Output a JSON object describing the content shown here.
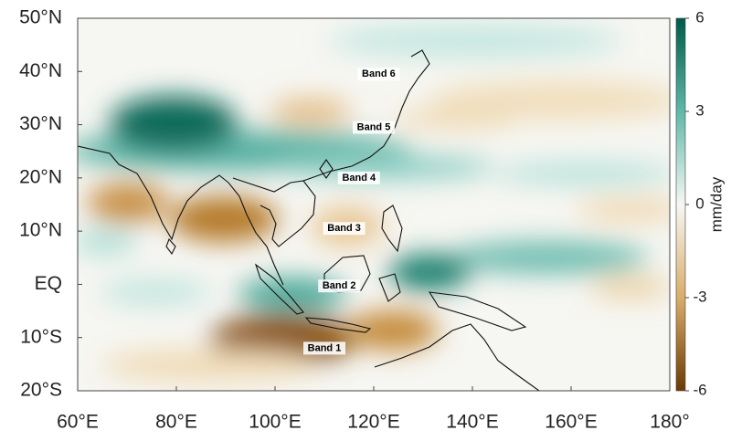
{
  "map": {
    "xaxis": {
      "lim": [
        60,
        180
      ],
      "ticks": [
        {
          "value": 60,
          "label": "60°E"
        },
        {
          "value": 80,
          "label": "80°E"
        },
        {
          "value": 100,
          "label": "100°E"
        },
        {
          "value": 120,
          "label": "120°E"
        },
        {
          "value": 140,
          "label": "140°E"
        },
        {
          "value": 160,
          "label": "160°E"
        },
        {
          "value": 180,
          "label": "180°"
        }
      ]
    },
    "yaxis": {
      "lim": [
        -20,
        50
      ],
      "ticks": [
        {
          "value": 50,
          "label": "50°N"
        },
        {
          "value": 40,
          "label": "40°N"
        },
        {
          "value": 30,
          "label": "30°N"
        },
        {
          "value": 20,
          "label": "20°N"
        },
        {
          "value": 10,
          "label": "10°N"
        },
        {
          "value": 0,
          "label": "EQ"
        },
        {
          "value": -10,
          "label": "10°S"
        },
        {
          "value": -20,
          "label": "20°S"
        }
      ]
    },
    "colorbar": {
      "label": "mm/day",
      "lim": [
        -6,
        6
      ],
      "ticks": [
        6,
        3,
        0,
        -3,
        -6
      ]
    },
    "annotations": [
      {
        "text": "Band 6",
        "lon": 121,
        "lat": 39.5
      },
      {
        "text": "Band 5",
        "lon": 120,
        "lat": 29.5
      },
      {
        "text": "Band 4",
        "lon": 117,
        "lat": 20
      },
      {
        "text": "Band 3",
        "lon": 114,
        "lat": 10.5
      },
      {
        "text": "Band 2",
        "lon": 113,
        "lat": -0.3
      },
      {
        "text": "Band 1",
        "lon": 110,
        "lat": -12
      }
    ]
  }
}
